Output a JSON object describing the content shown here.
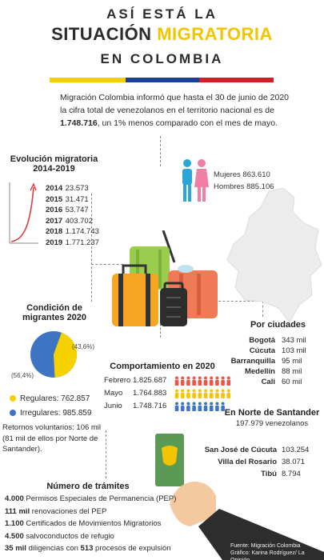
{
  "header": {
    "line1": "ASÍ ESTÁ LA",
    "line2a": "SITUACIÓN ",
    "line2b": "MIGRATORIA",
    "line3": "EN COLOMBIA"
  },
  "flag_colors": [
    "#f6d100",
    "#1d3f95",
    "#d21f2b"
  ],
  "intro": {
    "text_a": "Migración Colombia informó que hasta el 30 de junio de 2020 la cifra total de venezolanos en el territorio nacional es de ",
    "total": "1.748.716",
    "text_b": ", un 1% menos comparado con el mes de mayo."
  },
  "evolution": {
    "title1": "Evolución migratoria",
    "title2": "2014-2019",
    "rows": [
      {
        "year": "2014",
        "value": "23.573"
      },
      {
        "year": "2015",
        "value": "31.471"
      },
      {
        "year": "2016",
        "value": "53.747"
      },
      {
        "year": "2017",
        "value": "403.702"
      },
      {
        "year": "2018",
        "value": "1.174.743"
      },
      {
        "year": "2019",
        "value": "1.771.237"
      }
    ]
  },
  "gender": {
    "women": "Mujeres 863.610",
    "men": "Hombres 885.106"
  },
  "condition": {
    "title1": "Condición de",
    "title2": "migrantes 2020",
    "pct_regular": "(43,6%)",
    "pct_irregular": "(56,4%)",
    "regular_fraction": 0.436,
    "regular_label": "Regulares: 762.857",
    "irregular_label": "Irregulares: 985.859",
    "returns": "Retornos voluntarios: 106 mil (81 mil de ellos por Norte de Santander).",
    "color_regular": "#f6d100",
    "color_irregular": "#3f74c4"
  },
  "behavior": {
    "title": "Comportamiento en 2020",
    "rows": [
      {
        "month": "Febrero",
        "value": "1.825.687",
        "color": "#e8574a",
        "count": 10
      },
      {
        "month": "Mayo",
        "value": "1.764.883",
        "color": "#f2c500",
        "count": 10
      },
      {
        "month": "Junio",
        "value": "1.748.716",
        "color": "#3f74c4",
        "count": 9
      }
    ]
  },
  "cities": {
    "title": "Por ciudades",
    "rows": [
      {
        "name": "Bogotá",
        "value": "343 mil"
      },
      {
        "name": "Cúcuta",
        "value": "103 mil"
      },
      {
        "name": "Barranquilla",
        "value": "95 mil"
      },
      {
        "name": "Medellín",
        "value": "88 mil"
      },
      {
        "name": "Cali",
        "value": "60 mil"
      }
    ]
  },
  "santander": {
    "title": "En Norte de Santander",
    "value": "197.979  venezolanos",
    "rows": [
      {
        "name": "San José de Cúcuta",
        "value": "103.254"
      },
      {
        "name": "Villa del Rosario",
        "value": "38.071"
      },
      {
        "name": "Tibú",
        "value": "8.794"
      }
    ]
  },
  "procedures": {
    "title": "Número de trámites",
    "rows": [
      {
        "num": "4.000",
        "text": " Permisos Especiales de Permanencia (PEP)"
      },
      {
        "num": "111 mil",
        "text": " renovaciones del PEP"
      },
      {
        "num": "1.100",
        "text": " Certificados de Movimientos Migratorios"
      },
      {
        "num": "4.500",
        "text": " salvoconductos de refugio"
      }
    ],
    "last_num1": "35 mil",
    "last_text1": " diligencias con ",
    "last_num2": "513",
    "last_text2": " procesos de expulsión"
  },
  "source": {
    "line1": "Fuente: Migración Colombia",
    "line2": "Gráfico: Karina Rodríguez/ La Opinión"
  }
}
